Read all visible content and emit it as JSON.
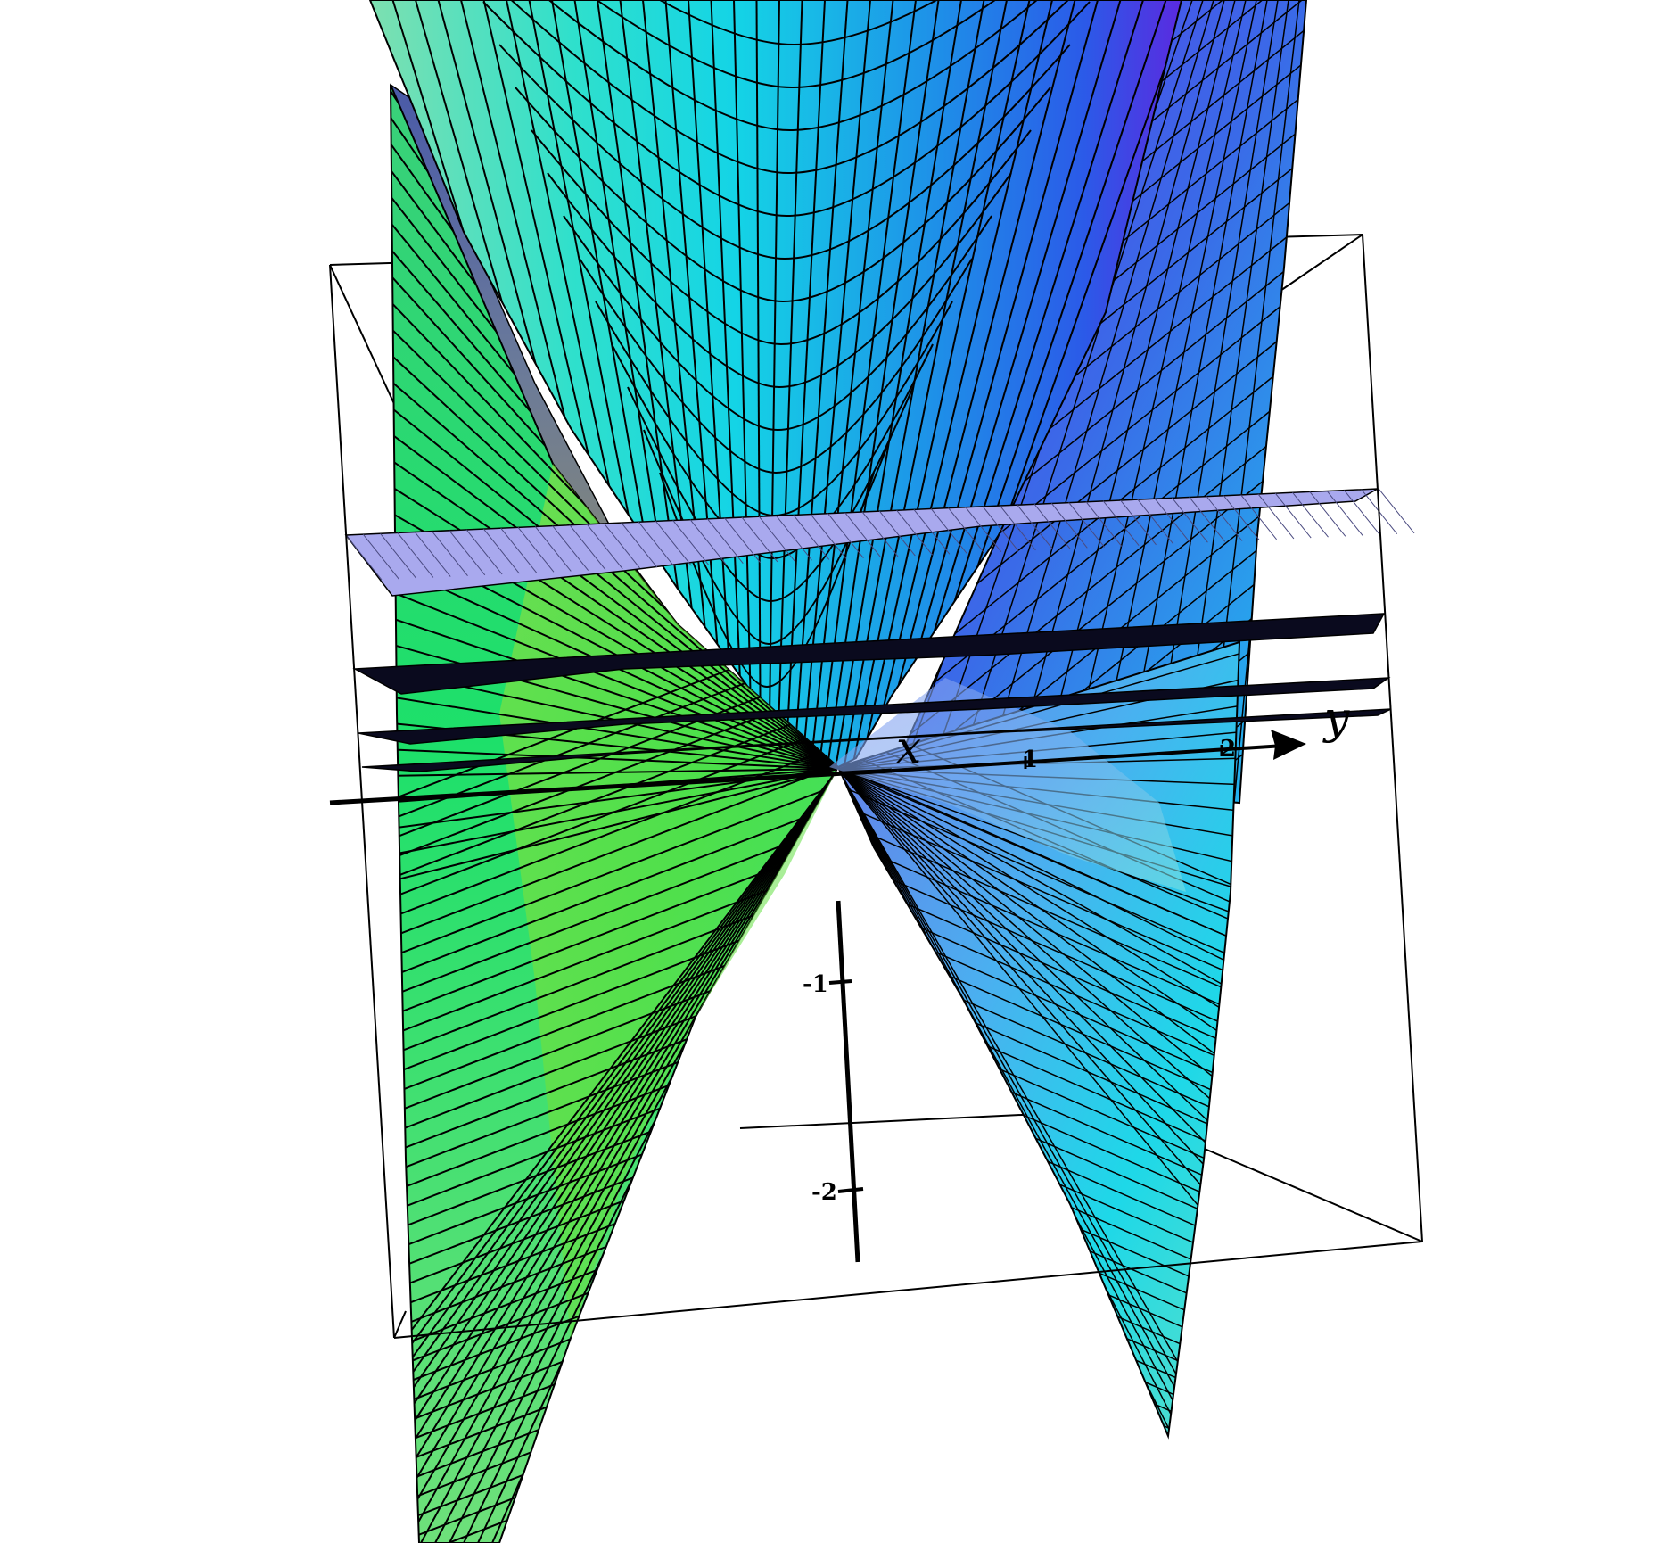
{
  "colors": {
    "background": "#ffffff",
    "surface_cyan": "#1ed8e0",
    "surface_blue": "#2a70e6",
    "surface_violet": "#5a2ae0",
    "surface_green": "#1de06a",
    "surface_lime": "#8fe02a",
    "plane_lavender": "#a9a9ee",
    "plane_dark": "#0a0a1e",
    "mesh_line": "#000000",
    "axis": "#000000"
  },
  "axes": {
    "x_label": "x",
    "y_label": "y",
    "y_ticks": [
      "1",
      "2"
    ],
    "z_ticks": [
      "-1",
      "-2"
    ]
  },
  "icons": [
    "arrow-head-icon"
  ]
}
